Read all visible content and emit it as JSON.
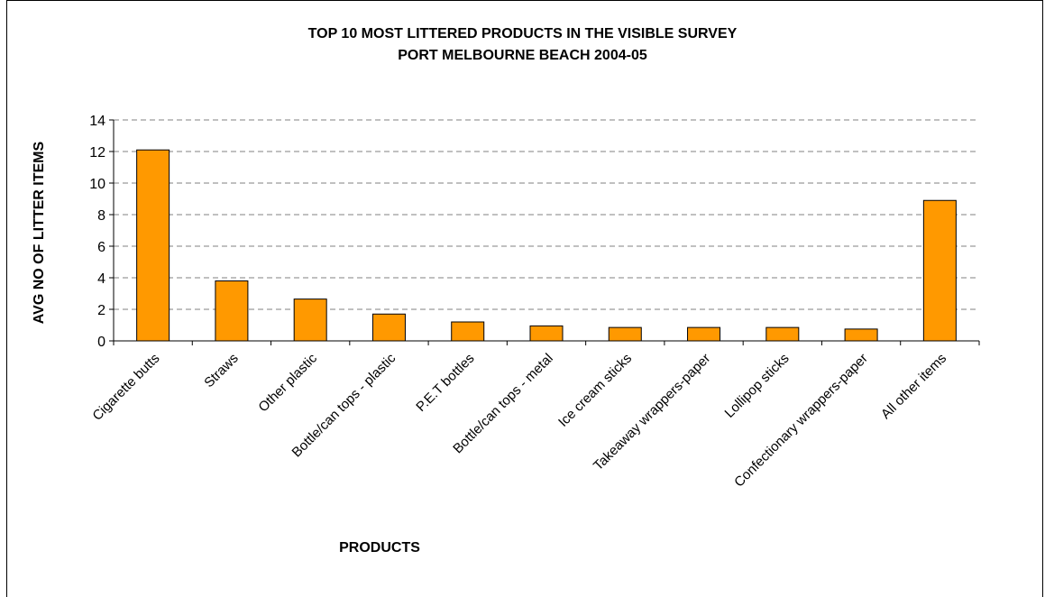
{
  "chart_data": {
    "type": "bar",
    "title": [
      "TOP 10 MOST LITTERED PRODUCTS IN THE VISIBLE SURVEY",
      "PORT MELBOURNE BEACH 2004-05"
    ],
    "xlabel": "PRODUCTS",
    "ylabel": "AVG NO OF LITTER ITEMS",
    "ylim": [
      0,
      14
    ],
    "yticks": [
      "0",
      "2",
      "4",
      "6",
      "8",
      "10",
      "12",
      "14"
    ],
    "grid": true,
    "categories": [
      "Cigarette butts",
      "Straws",
      "Other plastic",
      "Bottle/can tops - plastic",
      "P.E.T bottles",
      "Bottle/can tops - metal",
      "Ice cream sticks",
      "Takeaway wrappers-paper",
      "Lollipop sticks",
      "Confectionary wrappers-paper",
      "All other items"
    ],
    "values": [
      12.1,
      3.8,
      2.65,
      1.7,
      1.2,
      0.95,
      0.85,
      0.85,
      0.85,
      0.75,
      8.9
    ],
    "bar_color": "#FF9900"
  }
}
